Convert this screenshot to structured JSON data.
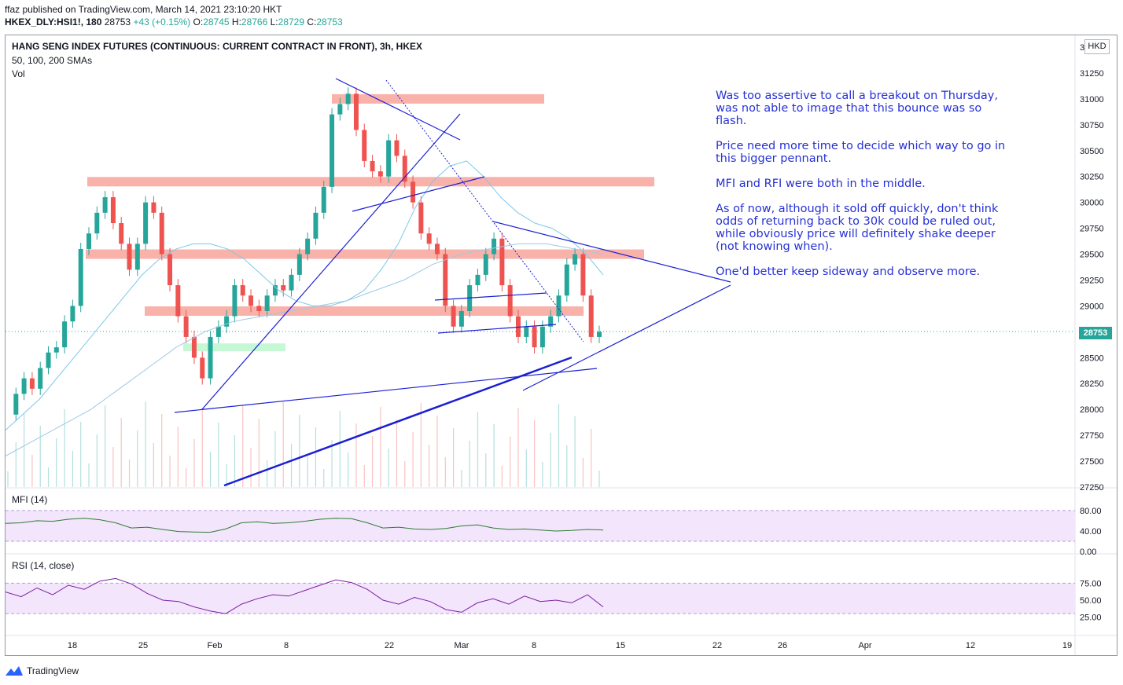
{
  "header": {
    "publish_line": "ffaz published on TradingView.com, March 14, 2021 23:10:20 HKT",
    "symbol": "HKEX_DLY:HSI1!, 180",
    "last": "28753",
    "change": "+43 (+0.15%)",
    "o_label": "O:",
    "o_value": "28745",
    "h_label": "H:",
    "h_value": "28766",
    "l_label": "L:",
    "l_value": "28729",
    "c_label": "C:",
    "c_value": "28753"
  },
  "legend": {
    "title": "HANG SENG INDEX FUTURES (CONTINUOUS: CURRENT CONTRACT IN FRONT), 3h, HKEX",
    "sma": "50, 100, 200 SMAs",
    "vol": "Vol"
  },
  "currency_label": "HKD",
  "last_price_tag": "28753",
  "mfi_title": "MFI (14)",
  "rsi_title": "RSI (14, close)",
  "annotation": [
    "Was too assertive to call a breakout on Thursday, was not able to image that this bounce was so flash.",
    "Price need more time to decide which way to go in this bigger pennant.",
    "MFI and RFI were both in the middle.",
    "As of now, although it sold off quickly, don't think odds of returning back to 30k could be ruled out, while obviously price will definitely shake deeper (not knowing when).",
    "One'd better keep sideway and observe more."
  ],
  "footer": {
    "brand": "TradingView"
  },
  "colors": {
    "up": "#26a69a",
    "down": "#ef5350",
    "zone": "#f8a49b",
    "trend": "#1a1fd4",
    "sma": "#7cc8e8",
    "mfi": "#2e7d32",
    "rsi": "#7b1fa2",
    "band": "#f3e5fc"
  },
  "chart_data": {
    "type": "candlestick",
    "title": "HANG SENG INDEX FUTURES (CONTINUOUS: CURRENT CONTRACT IN FRONT), 3h, HKEX",
    "x_ticks": [
      "18",
      "25",
      "Feb",
      "8",
      "22",
      "Mar",
      "8",
      "15",
      "22",
      "26",
      "Apr",
      "12",
      "19"
    ],
    "price_ticks": [
      "31500",
      "31250",
      "31000",
      "30750",
      "30500",
      "30250",
      "30000",
      "29750",
      "29500",
      "29250",
      "29000",
      "28750",
      "28500",
      "28250",
      "28000",
      "27750",
      "27500",
      "27250"
    ],
    "mfi_ticks": [
      "80.00",
      "40.00",
      "0.00"
    ],
    "rsi_ticks": [
      "75.00",
      "50.00",
      "25.00"
    ],
    "ylim": [
      27250,
      31500
    ],
    "close_path": [
      27950,
      28150,
      28300,
      28200,
      28400,
      28550,
      28600,
      28850,
      29000,
      29550,
      29700,
      29900,
      30050,
      29800,
      29600,
      29350,
      29600,
      30000,
      29900,
      29500,
      29200,
      28900,
      28700,
      28500,
      28300,
      28700,
      28800,
      28900,
      29200,
      29100,
      29000,
      28950,
      29100,
      29200,
      29150,
      29300,
      29500,
      29650,
      29900,
      30150,
      30850,
      30950,
      31050,
      30700,
      30400,
      30300,
      30250,
      30600,
      30450,
      30200,
      30000,
      29700,
      29600,
      29500,
      29000,
      28800,
      28950,
      29200,
      29300,
      29500,
      29650,
      29200,
      28900,
      28700,
      28800,
      28600,
      28800,
      28900,
      29100,
      29400,
      29500,
      29100,
      28700,
      28750
    ],
    "sma_50": [
      27800,
      27950,
      28100,
      28300,
      28500,
      28700,
      28900,
      29100,
      29300,
      29450,
      29550,
      29600,
      29600,
      29550,
      29450,
      29300,
      29150,
      29050,
      29000,
      29000,
      29050,
      29150,
      29350,
      29600,
      29950,
      30200,
      30350,
      30400,
      30250,
      30050,
      29900,
      29800,
      29750,
      29650,
      29500,
      29300
    ],
    "sma_100": [
      27550,
      27700,
      27850,
      28000,
      28200,
      28400,
      28600,
      28750,
      28850,
      28900,
      28950,
      29000,
      29050,
      29150,
      29250,
      29400,
      29500,
      29550,
      29600,
      29600,
      29550,
      29500
    ],
    "mfi_range": [
      0,
      100
    ],
    "rsi_range": [
      0,
      100
    ],
    "rsi_band": [
      30,
      70
    ],
    "mfi_band": [
      20,
      80
    ],
    "resistance_zones": [
      31000,
      30200,
      29500,
      28950
    ],
    "support_zone": 28600,
    "last_value": 28753
  }
}
